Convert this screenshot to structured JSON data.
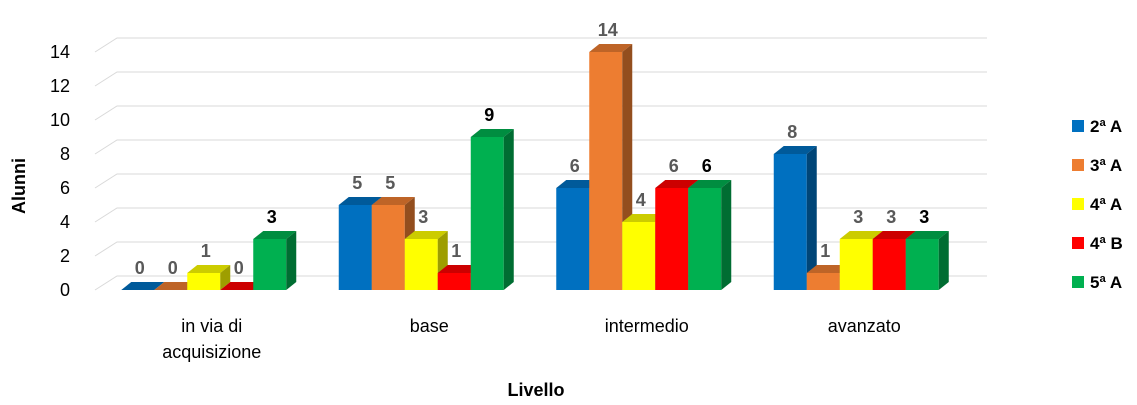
{
  "chart_data": {
    "type": "bar",
    "title": "",
    "xlabel": "Livello",
    "ylabel": "Alunni",
    "ylim": [
      0,
      14
    ],
    "yticks": [
      "0",
      "2",
      "4",
      "6",
      "8",
      "10",
      "12",
      "14"
    ],
    "grid": true,
    "legend_position": "right",
    "categories": [
      [
        "in via di",
        "acquisizione"
      ],
      [
        "base"
      ],
      [
        "intermedio"
      ],
      [
        "avanzato"
      ]
    ],
    "series": [
      {
        "name": "2ª A",
        "color": "#0070c0",
        "values": [
          0,
          5,
          6,
          8
        ],
        "labels": [
          "0",
          "5",
          "6",
          "8"
        ],
        "label_color": "#595959"
      },
      {
        "name": "3ª A",
        "color": "#ed7d31",
        "values": [
          0,
          5,
          14,
          1
        ],
        "labels": [
          "0",
          "5",
          "14",
          "1"
        ],
        "label_color": "#595959"
      },
      {
        "name": "4ª A",
        "color": "#ffff00",
        "values": [
          1,
          3,
          4,
          3
        ],
        "labels": [
          "1",
          "3",
          "4",
          "3"
        ],
        "label_color": "#595959"
      },
      {
        "name": "4ª B",
        "color": "#ff0000",
        "values": [
          0,
          1,
          6,
          3
        ],
        "labels": [
          "0",
          "1",
          "6",
          "3"
        ],
        "label_color": "#595959"
      },
      {
        "name": "5ª A",
        "color": "#00b050",
        "values": [
          3,
          9,
          6,
          3
        ],
        "labels": [
          "3",
          "9",
          "6",
          "3"
        ],
        "label_color": "#000000"
      }
    ]
  }
}
